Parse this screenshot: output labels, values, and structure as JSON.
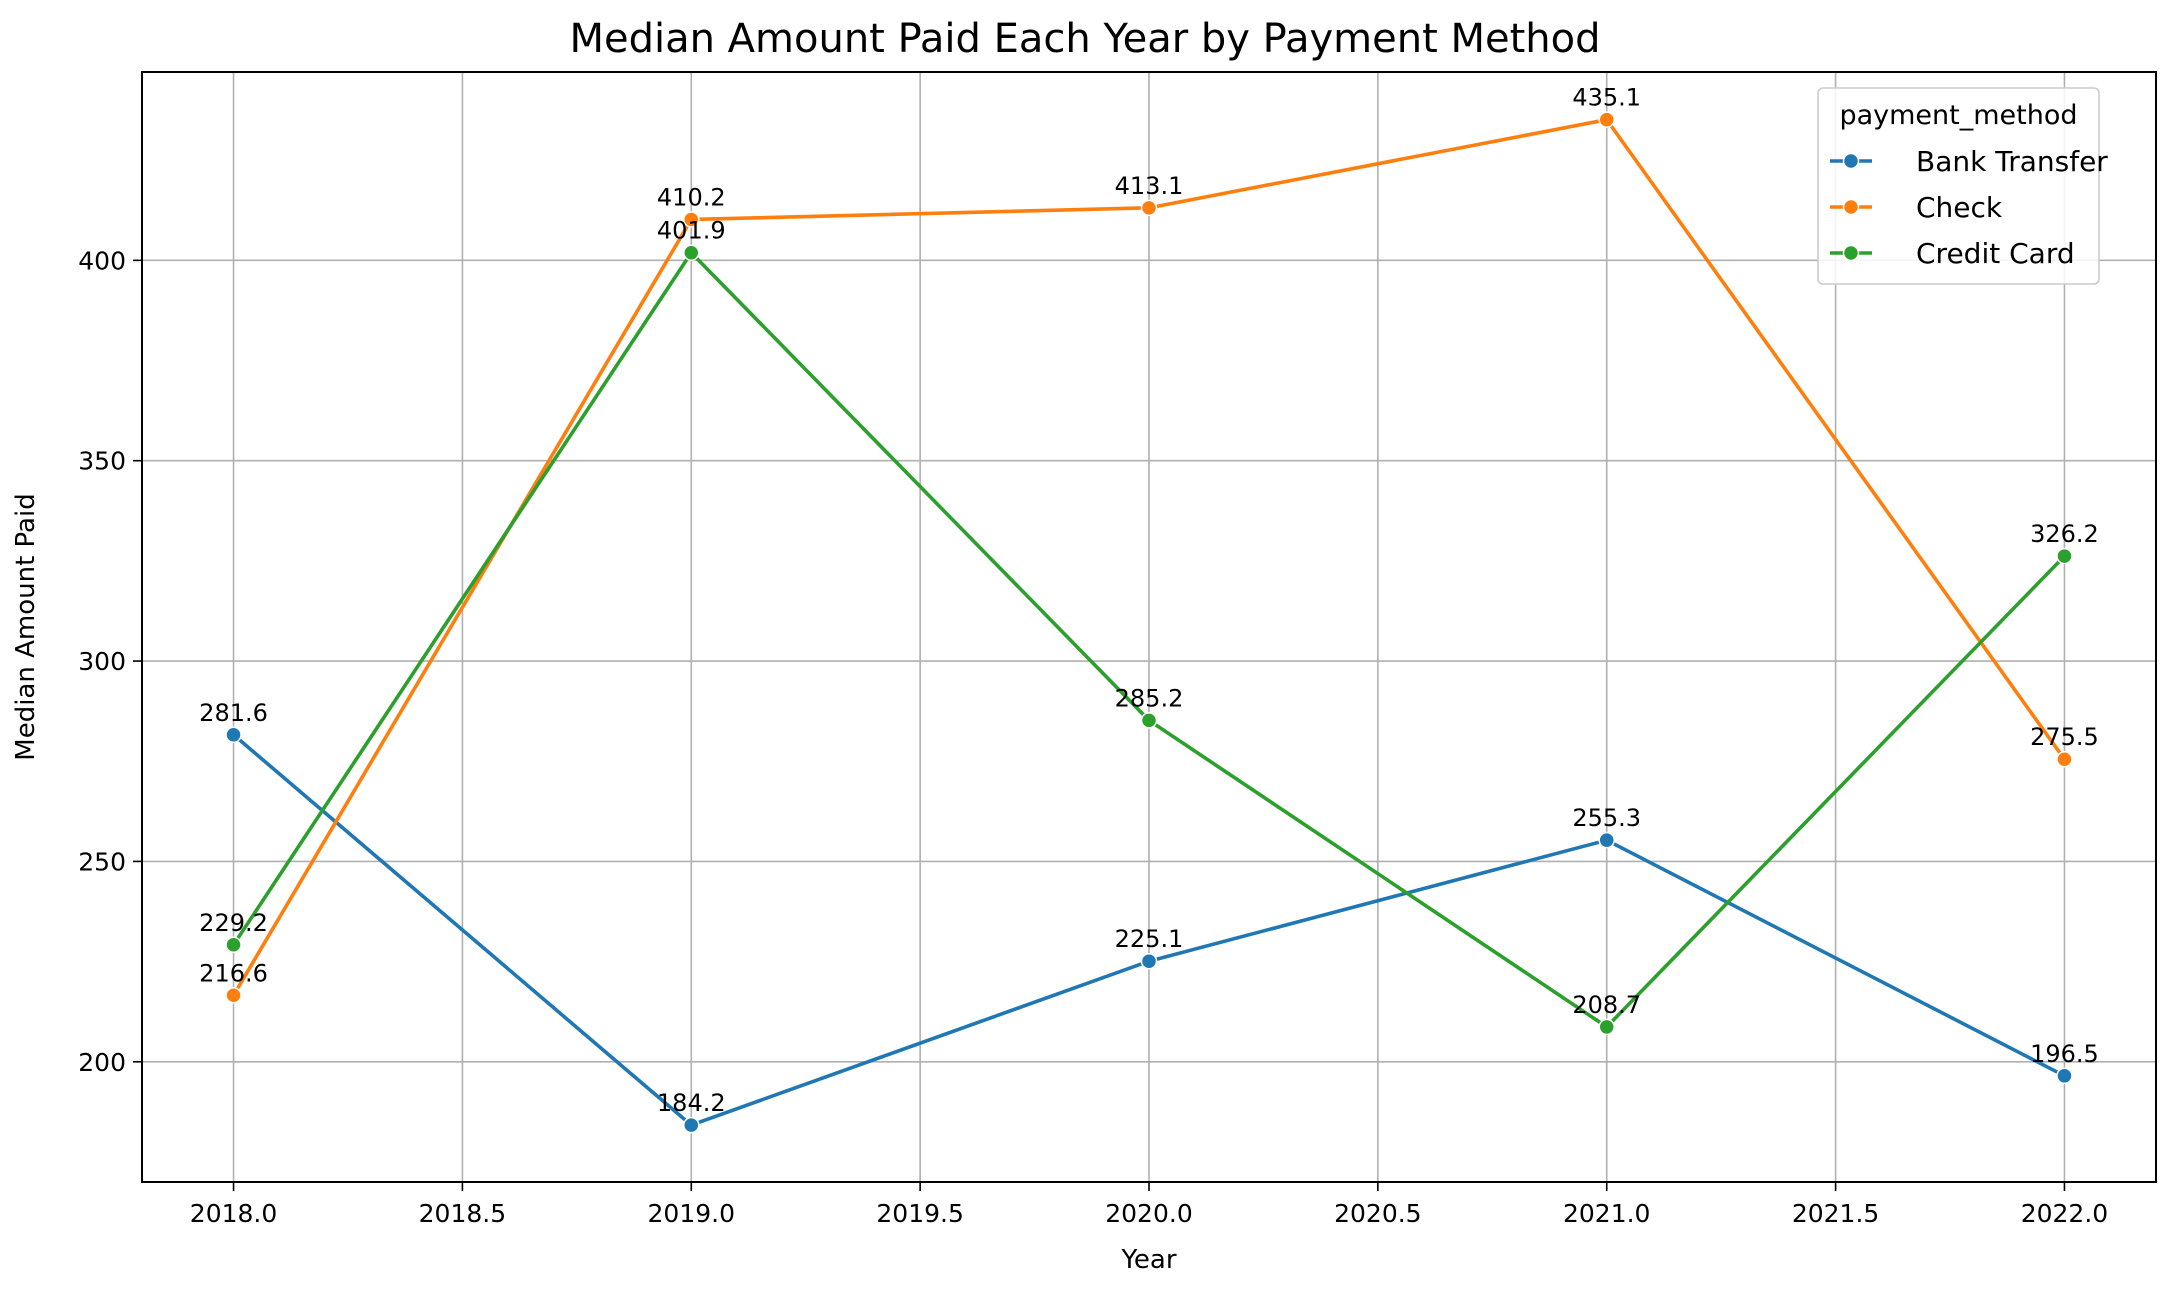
{
  "chart_data": {
    "type": "line",
    "title": "Median Amount Paid Each Year by Payment Method",
    "xlabel": "Year",
    "ylabel": "Median Amount Paid",
    "x": [
      2018,
      2019,
      2020,
      2021,
      2022
    ],
    "xlim": [
      2017.8,
      2022.2
    ],
    "ylim": [
      170,
      447
    ],
    "xticks": [
      2018.0,
      2018.5,
      2019.0,
      2019.5,
      2020.0,
      2020.5,
      2021.0,
      2021.5,
      2022.0
    ],
    "xtick_labels": [
      "2018.0",
      "2018.5",
      "2019.0",
      "2019.5",
      "2020.0",
      "2020.5",
      "2021.0",
      "2021.5",
      "2022.0"
    ],
    "yticks": [
      200,
      250,
      300,
      350,
      400
    ],
    "ytick_labels": [
      "200",
      "250",
      "300",
      "350",
      "400"
    ],
    "grid": true,
    "legend": {
      "title": "payment_method",
      "position": "top-right"
    },
    "series": [
      {
        "name": "Bank Transfer",
        "color": "#1f77b4",
        "values": [
          281.6,
          184.2,
          225.1,
          255.3,
          196.5
        ],
        "labels": [
          "281.6",
          "184.2",
          "225.1",
          "255.3",
          "196.5"
        ]
      },
      {
        "name": "Check",
        "color": "#ff7f0e",
        "values": [
          216.6,
          410.2,
          413.1,
          435.1,
          275.5
        ],
        "labels": [
          "216.6",
          "410.2",
          "413.1",
          "435.1",
          "275.5"
        ]
      },
      {
        "name": "Credit Card",
        "color": "#2ca02c",
        "values": [
          229.2,
          401.9,
          285.2,
          208.7,
          326.2
        ],
        "labels": [
          "229.2",
          "401.9",
          "285.2",
          "208.7",
          "326.2"
        ]
      }
    ]
  }
}
